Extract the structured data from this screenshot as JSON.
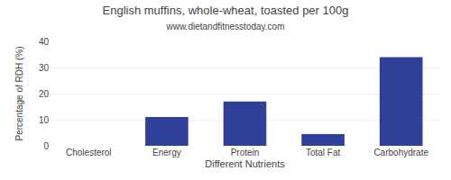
{
  "chart_data": {
    "type": "bar",
    "title": "English muffins, whole-wheat, toasted per 100g",
    "subtitle": "www.dietandfitnesstoday.com",
    "xlabel": "Different Nutrients",
    "ylabel": "Percentage of RDH (%)",
    "categories": [
      "Cholesterol",
      "Energy",
      "Protein",
      "Total Fat",
      "Carbohydrate"
    ],
    "values": [
      0,
      11,
      17,
      4.5,
      34
    ],
    "color": "#2e4099",
    "ylim": [
      0,
      40
    ],
    "yticks": [
      0,
      10,
      20,
      30,
      40
    ],
    "grid": true
  }
}
